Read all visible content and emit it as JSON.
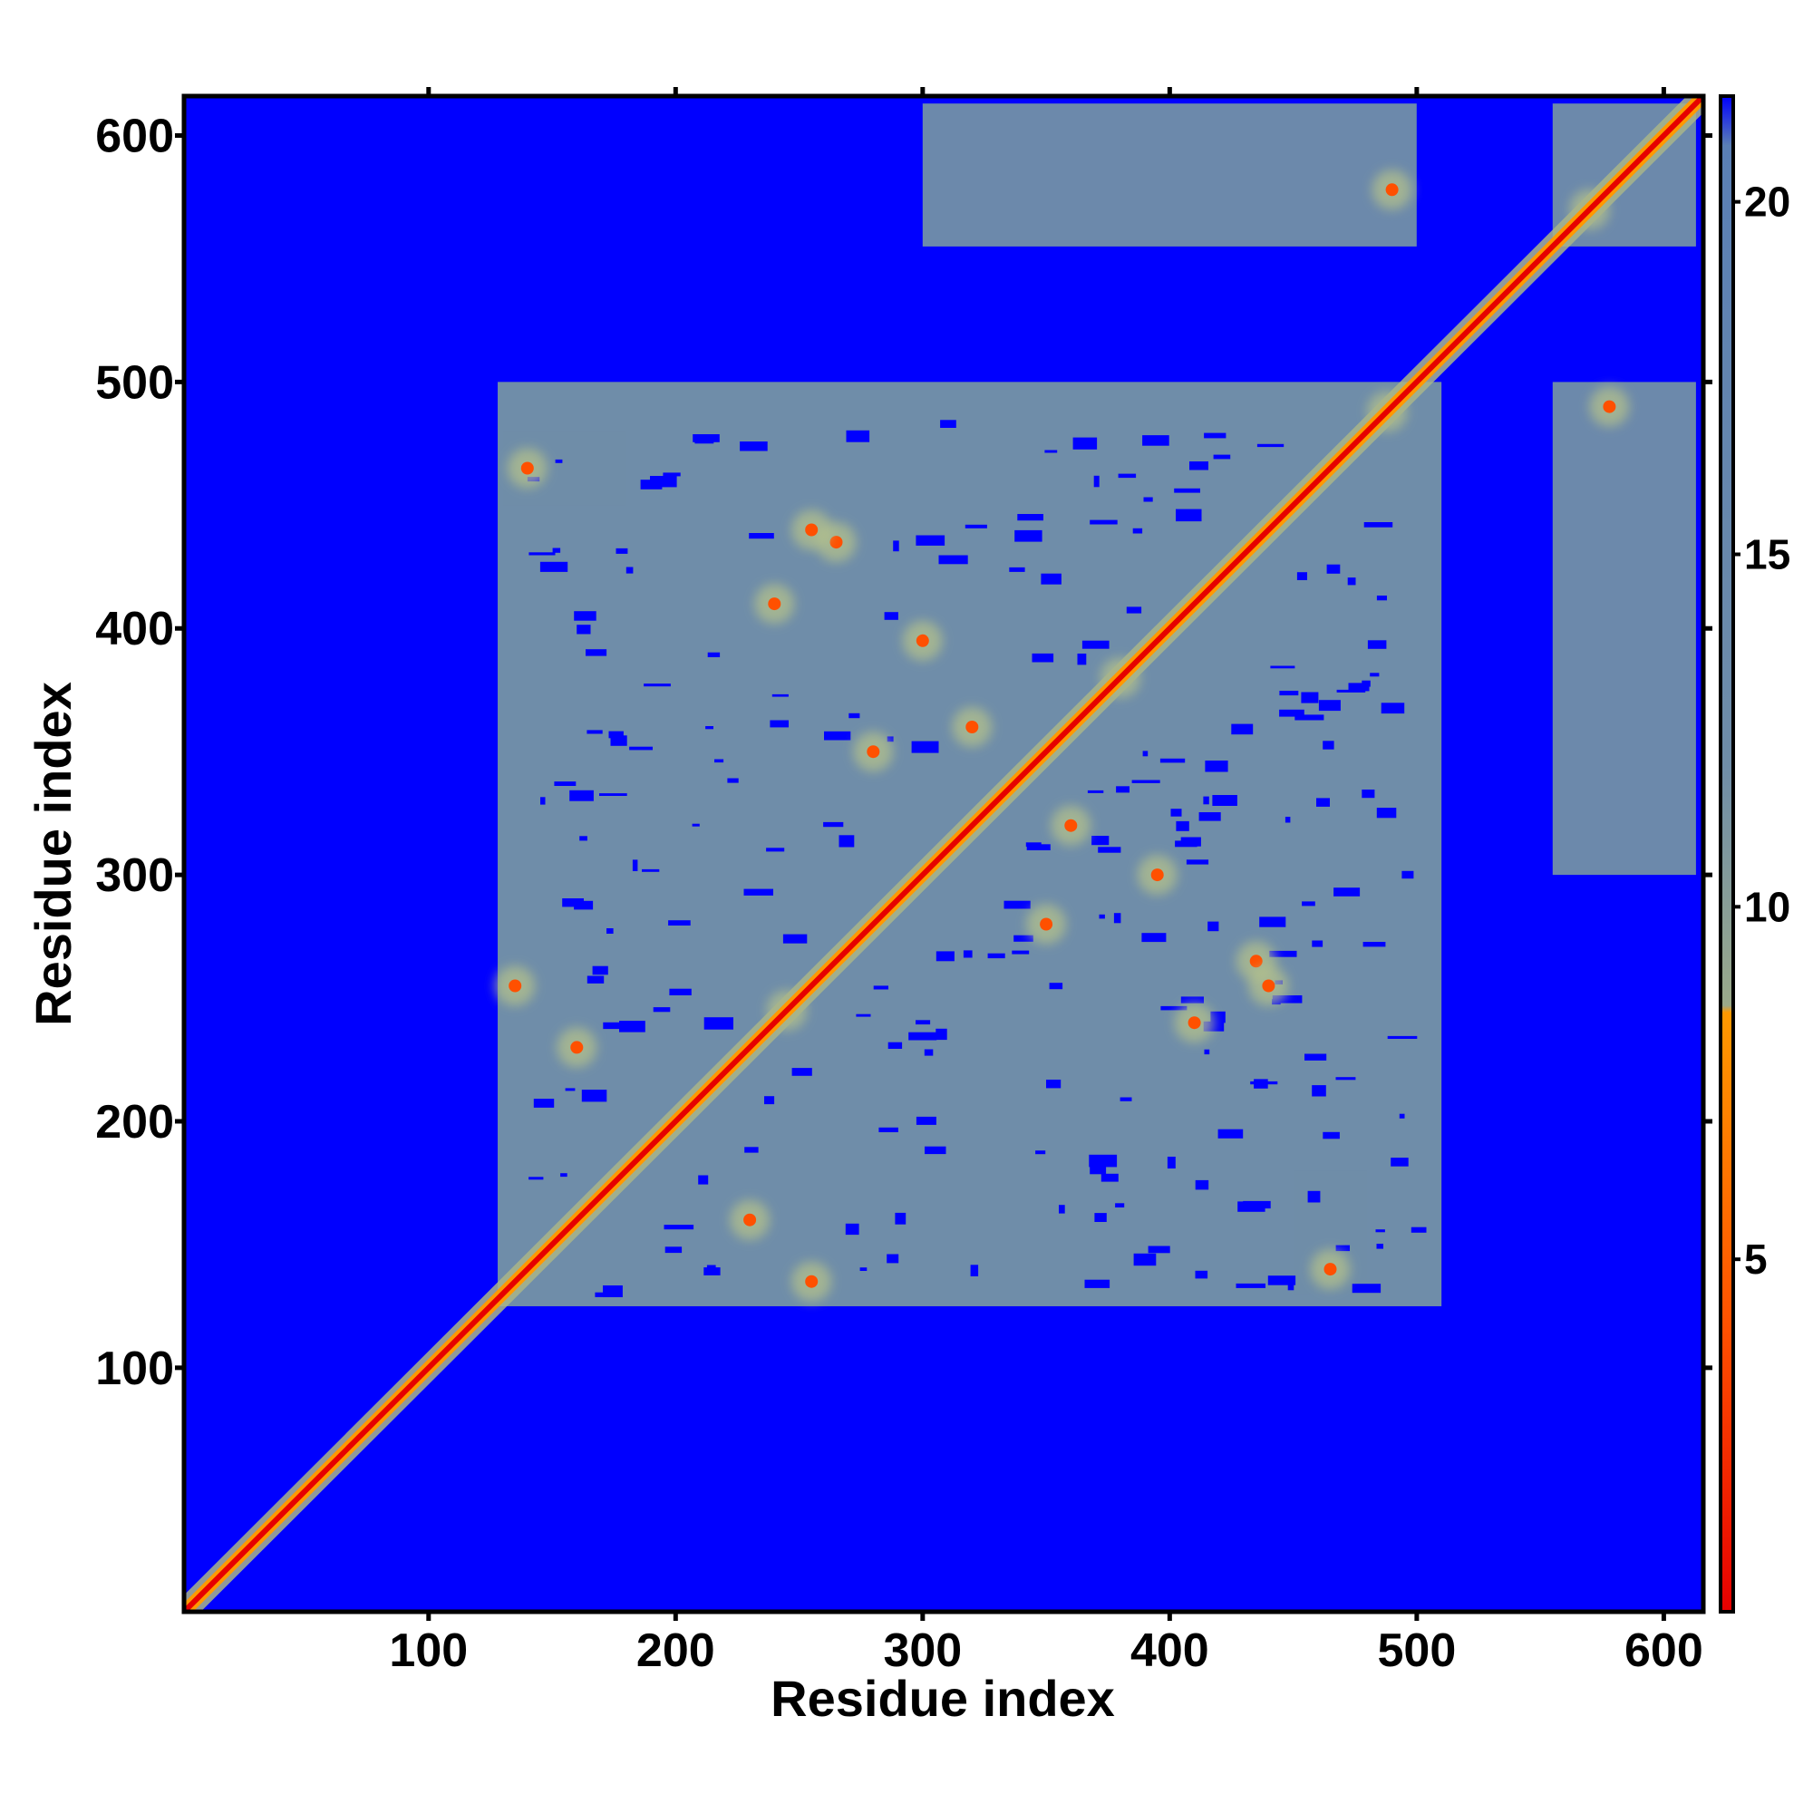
{
  "chart_data": {
    "type": "heatmap",
    "title": "",
    "xlabel": "Residue index",
    "ylabel": "Residue index",
    "xlim": [
      1,
      616
    ],
    "ylim": [
      1,
      616
    ],
    "x_ticks": [
      100,
      200,
      300,
      400,
      500,
      600
    ],
    "y_ticks": [
      100,
      200,
      300,
      400,
      500,
      600
    ],
    "grid": false,
    "colorbar": {
      "placement": "right",
      "range": [
        0,
        21.5
      ],
      "ticks": [
        5,
        10,
        15,
        20
      ],
      "stops": [
        {
          "value": 0,
          "color": "#e60000"
        },
        {
          "value": 4,
          "color": "#ff5000"
        },
        {
          "value": 8.5,
          "color": "#ff9900"
        },
        {
          "value": 8.6,
          "color": "#9aa98a"
        },
        {
          "value": 12,
          "color": "#6f8da8"
        },
        {
          "value": 20.8,
          "color": "#5a7fb5"
        },
        {
          "value": 21.5,
          "color": "#0000ff"
        }
      ]
    },
    "background_value": 21.5,
    "background_color": "#0000ff",
    "description_values": {
      "diagonal_value": 2,
      "contact_region_value": 18,
      "close_contact_value": 6
    },
    "contact_regions": [
      {
        "x": [
          128,
          510
        ],
        "y": [
          125,
          500
        ]
      },
      {
        "x": [
          128,
          510
        ],
        "y": [
          125,
          500
        ]
      },
      {
        "x": [
          300,
          500
        ],
        "y": [
          555,
          613
        ]
      },
      {
        "x": [
          555,
          613
        ],
        "y": [
          300,
          500
        ]
      },
      {
        "x": [
          555,
          613
        ],
        "y": [
          555,
          613
        ]
      },
      {
        "x": [
          130,
          180
        ],
        "y": [
          450,
          480
        ]
      },
      {
        "x": [
          450,
          480
        ],
        "y": [
          130,
          180
        ]
      }
    ],
    "off_diagonal_contacts": [
      {
        "x": 140,
        "y": 465
      },
      {
        "x": 465,
        "y": 140
      },
      {
        "x": 245,
        "y": 245
      },
      {
        "x": 380,
        "y": 380
      },
      {
        "x": 488,
        "y": 488
      },
      {
        "x": 570,
        "y": 570
      },
      {
        "x": 490,
        "y": 578
      },
      {
        "x": 578,
        "y": 490
      },
      {
        "x": 265,
        "y": 435
      },
      {
        "x": 435,
        "y": 265
      },
      {
        "x": 300,
        "y": 395
      },
      {
        "x": 395,
        "y": 300
      },
      {
        "x": 320,
        "y": 360
      },
      {
        "x": 360,
        "y": 320
      },
      {
        "x": 160,
        "y": 230
      },
      {
        "x": 230,
        "y": 160
      },
      {
        "x": 255,
        "y": 135
      },
      {
        "x": 135,
        "y": 255
      },
      {
        "x": 440,
        "y": 255
      },
      {
        "x": 255,
        "y": 440
      },
      {
        "x": 410,
        "y": 240
      },
      {
        "x": 240,
        "y": 410
      },
      {
        "x": 350,
        "y": 280
      },
      {
        "x": 280,
        "y": 350
      }
    ]
  }
}
